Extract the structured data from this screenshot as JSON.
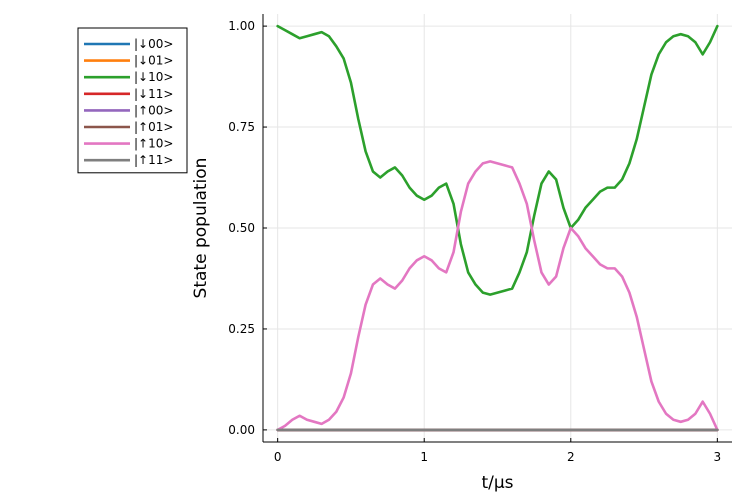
{
  "chart_data": {
    "type": "line",
    "xlabel": "t/μs",
    "ylabel": "State population",
    "xlim": [
      -0.1,
      3.1
    ],
    "ylim": [
      -0.03,
      1.03
    ],
    "xticks": [
      0,
      1,
      2,
      3
    ],
    "xtick_labels": [
      "0",
      "1",
      "2",
      "3"
    ],
    "yticks": [
      0,
      0.25,
      0.5,
      0.75,
      1.0
    ],
    "ytick_labels": [
      "0.00",
      "0.25",
      "0.50",
      "0.75",
      "1.00"
    ],
    "grid": true,
    "legend_position": "outer-top-left",
    "series": [
      {
        "name": "|↓00>",
        "color": "#1f77b4",
        "x": [
          0,
          3
        ],
        "y": [
          0,
          0
        ]
      },
      {
        "name": "|↓01>",
        "color": "#ff7f0e",
        "x": [
          0,
          3
        ],
        "y": [
          0,
          0
        ]
      },
      {
        "name": "|↓10>",
        "color": "#2ca02c",
        "x": [
          0,
          0.05,
          0.1,
          0.15,
          0.2,
          0.25,
          0.3,
          0.35,
          0.4,
          0.45,
          0.5,
          0.55,
          0.6,
          0.65,
          0.7,
          0.75,
          0.8,
          0.85,
          0.9,
          0.95,
          1.0,
          1.05,
          1.1,
          1.15,
          1.2,
          1.25,
          1.3,
          1.35,
          1.4,
          1.45,
          1.5,
          1.55,
          1.6,
          1.65,
          1.7,
          1.75,
          1.8,
          1.85,
          1.9,
          1.95,
          2.0,
          2.05,
          2.1,
          2.15,
          2.2,
          2.25,
          2.3,
          2.35,
          2.4,
          2.45,
          2.5,
          2.55,
          2.6,
          2.65,
          2.7,
          2.75,
          2.8,
          2.85,
          2.9,
          2.95,
          3.0
        ],
        "y": [
          1.0,
          0.99,
          0.98,
          0.97,
          0.975,
          0.98,
          0.985,
          0.975,
          0.95,
          0.92,
          0.86,
          0.77,
          0.69,
          0.64,
          0.625,
          0.64,
          0.65,
          0.63,
          0.6,
          0.58,
          0.57,
          0.58,
          0.6,
          0.61,
          0.56,
          0.46,
          0.39,
          0.36,
          0.34,
          0.335,
          0.34,
          0.345,
          0.35,
          0.39,
          0.44,
          0.53,
          0.61,
          0.64,
          0.62,
          0.55,
          0.5,
          0.52,
          0.55,
          0.57,
          0.59,
          0.6,
          0.6,
          0.62,
          0.66,
          0.72,
          0.8,
          0.88,
          0.93,
          0.96,
          0.975,
          0.98,
          0.975,
          0.96,
          0.93,
          0.96,
          1.0
        ]
      },
      {
        "name": "|↓11>",
        "color": "#d62728",
        "x": [
          0,
          3
        ],
        "y": [
          0,
          0
        ]
      },
      {
        "name": "|↑00>",
        "color": "#9467bd",
        "x": [
          0,
          3
        ],
        "y": [
          0,
          0
        ]
      },
      {
        "name": "|↑01>",
        "color": "#8c564b",
        "x": [
          0,
          3
        ],
        "y": [
          0,
          0
        ]
      },
      {
        "name": "|↑10>",
        "color": "#e377c2",
        "x": [
          0,
          0.05,
          0.1,
          0.15,
          0.2,
          0.25,
          0.3,
          0.35,
          0.4,
          0.45,
          0.5,
          0.55,
          0.6,
          0.65,
          0.7,
          0.75,
          0.8,
          0.85,
          0.9,
          0.95,
          1.0,
          1.05,
          1.1,
          1.15,
          1.2,
          1.25,
          1.3,
          1.35,
          1.4,
          1.45,
          1.5,
          1.55,
          1.6,
          1.65,
          1.7,
          1.75,
          1.8,
          1.85,
          1.9,
          1.95,
          2.0,
          2.05,
          2.1,
          2.15,
          2.2,
          2.25,
          2.3,
          2.35,
          2.4,
          2.45,
          2.5,
          2.55,
          2.6,
          2.65,
          2.7,
          2.75,
          2.8,
          2.85,
          2.9,
          2.95,
          3.0
        ],
        "y": [
          0.0,
          0.01,
          0.025,
          0.035,
          0.025,
          0.02,
          0.015,
          0.025,
          0.045,
          0.08,
          0.14,
          0.23,
          0.31,
          0.36,
          0.375,
          0.36,
          0.35,
          0.37,
          0.4,
          0.42,
          0.43,
          0.42,
          0.4,
          0.39,
          0.44,
          0.54,
          0.61,
          0.64,
          0.66,
          0.665,
          0.66,
          0.655,
          0.65,
          0.61,
          0.56,
          0.47,
          0.39,
          0.36,
          0.38,
          0.45,
          0.5,
          0.48,
          0.45,
          0.43,
          0.41,
          0.4,
          0.4,
          0.38,
          0.34,
          0.28,
          0.2,
          0.12,
          0.07,
          0.04,
          0.025,
          0.02,
          0.025,
          0.04,
          0.07,
          0.04,
          0.0
        ]
      },
      {
        "name": "|↑11>",
        "color": "#7f7f7f",
        "x": [
          0,
          3
        ],
        "y": [
          0,
          0
        ]
      }
    ]
  }
}
